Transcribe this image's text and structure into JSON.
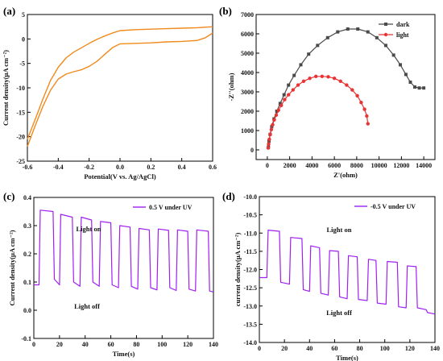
{
  "chart_data": [
    {
      "panel": "(a)",
      "type": "line",
      "xlabel": "Potential(V vs. Ag/AgCl)",
      "ylabel": "Current density(µA cm⁻²)",
      "xlim": [
        -0.6,
        0.6
      ],
      "ylim": [
        -25,
        5
      ],
      "xticks": [
        -0.6,
        -0.4,
        -0.2,
        0.0,
        0.2,
        0.4,
        0.6
      ],
      "xtick_labels": [
        "-0.6",
        "-0.4",
        "-0.2",
        "0.0",
        "0.2",
        "0.4",
        "0.6"
      ],
      "yticks": [
        -25,
        -20,
        -15,
        -10,
        -5,
        0,
        5
      ],
      "ytick_labels": [
        "-25",
        "-20",
        "-15",
        "-10",
        "-5",
        "0",
        "5"
      ],
      "grid": false,
      "color": "#f08a1c",
      "series": [
        {
          "x": [
            -0.6,
            -0.55,
            -0.5,
            -0.45,
            -0.4,
            -0.35,
            -0.3,
            -0.25,
            -0.2,
            -0.15,
            -0.1,
            -0.05,
            0.0,
            0.1,
            0.2,
            0.3,
            0.4,
            0.5,
            0.6
          ],
          "values": [
            -20.5,
            -16.5,
            -12.3,
            -8.5,
            -5.8,
            -3.9,
            -2.7,
            -1.8,
            -0.9,
            -0.1,
            0.6,
            1.2,
            1.7,
            1.9,
            2.0,
            2.1,
            2.2,
            2.3,
            2.5
          ]
        },
        {
          "x": [
            0.6,
            0.55,
            0.5,
            0.4,
            0.3,
            0.2,
            0.1,
            0.0,
            -0.05,
            -0.1,
            -0.15,
            -0.2,
            -0.25,
            -0.3,
            -0.35,
            -0.4,
            -0.45,
            -0.5,
            -0.55,
            -0.6
          ],
          "values": [
            1.2,
            0.2,
            -0.3,
            -0.5,
            -0.6,
            -0.8,
            -0.9,
            -1.0,
            -1.8,
            -3.2,
            -4.6,
            -5.6,
            -6.3,
            -6.7,
            -7.2,
            -8.2,
            -10.5,
            -13.8,
            -17.8,
            -22.0
          ]
        }
      ]
    },
    {
      "panel": "(b)",
      "type": "scatter",
      "xlabel": "Z'(ohm)",
      "ylabel": "-Z''(ohm)",
      "xlim": [
        -1000,
        15000
      ],
      "ylim": [
        -500,
        7000
      ],
      "xticks": [
        0,
        2000,
        4000,
        6000,
        8000,
        10000,
        12000,
        14000
      ],
      "xtick_labels": [
        "0",
        "2000",
        "4000",
        "6000",
        "8000",
        "10000",
        "12000",
        "14000"
      ],
      "yticks": [
        0,
        1000,
        2000,
        3000,
        4000,
        5000,
        6000,
        7000
      ],
      "ytick_labels": [
        "0",
        "1000",
        "2000",
        "3000",
        "4000",
        "5000",
        "6000",
        "7000"
      ],
      "grid": false,
      "legend": "top-right",
      "series": [
        {
          "name": "dark",
          "color": "#4a4a4a",
          "marker": "square",
          "x": [
            100,
            150,
            250,
            400,
            600,
            850,
            1150,
            1500,
            1900,
            2400,
            3000,
            3700,
            4500,
            5400,
            6300,
            7200,
            8100,
            9000,
            9800,
            10600,
            11300,
            11900,
            12400,
            12800,
            13200,
            13600,
            14000
          ],
          "values": [
            150,
            450,
            800,
            1200,
            1600,
            2000,
            2400,
            2850,
            3350,
            3850,
            4400,
            4950,
            5400,
            5800,
            6100,
            6250,
            6250,
            6100,
            5800,
            5400,
            4900,
            4400,
            3900,
            3500,
            3250,
            3200,
            3200
          ]
        },
        {
          "name": "light",
          "color": "#e83434",
          "marker": "circle",
          "x": [
            80,
            120,
            180,
            260,
            360,
            480,
            620,
            800,
            1000,
            1250,
            1550,
            1900,
            2300,
            2750,
            3250,
            3800,
            4350,
            4900,
            5450,
            6000,
            6550,
            7100,
            7600,
            8050,
            8400,
            8700,
            8900,
            9000
          ],
          "values": [
            100,
            300,
            550,
            800,
            1050,
            1300,
            1550,
            1800,
            2050,
            2300,
            2600,
            2850,
            3100,
            3350,
            3550,
            3700,
            3800,
            3800,
            3780,
            3700,
            3550,
            3350,
            3100,
            2800,
            2450,
            2100,
            1750,
            1350
          ]
        }
      ]
    },
    {
      "panel": "(c)",
      "type": "line",
      "xlabel": "Time(s)",
      "ylabel": "Current density(µA cm⁻²)",
      "xlim": [
        0,
        140
      ],
      "ylim": [
        -0.1,
        0.4
      ],
      "xticks": [
        0,
        20,
        40,
        60,
        80,
        100,
        120,
        140
      ],
      "xtick_labels": [
        "0",
        "20",
        "40",
        "60",
        "80",
        "100",
        "120",
        "140"
      ],
      "yticks": [
        -0.1,
        0.0,
        0.1,
        0.2,
        0.3,
        0.4
      ],
      "ytick_labels": [
        "-0.1",
        "0.0",
        "0.1",
        "0.2",
        "0.3",
        "0.4"
      ],
      "grid": false,
      "legend": "top-right",
      "annotations": [
        "Light on",
        "Light off"
      ],
      "series": [
        {
          "name": "0.5 V under UV",
          "color": "#a020f0",
          "x": [
            0,
            4,
            5,
            15,
            16,
            20,
            21,
            30,
            31,
            36,
            37,
            45,
            46,
            51,
            52,
            60,
            61,
            66,
            67,
            75,
            76,
            81,
            82,
            90,
            91,
            96,
            97,
            105,
            106,
            111,
            112,
            120,
            121,
            126,
            127,
            136,
            137,
            140
          ],
          "values": [
            0.09,
            0.09,
            0.355,
            0.35,
            0.11,
            0.09,
            0.34,
            0.33,
            0.1,
            0.085,
            0.33,
            0.32,
            0.1,
            0.085,
            0.315,
            0.31,
            0.09,
            0.08,
            0.3,
            0.295,
            0.085,
            0.075,
            0.29,
            0.285,
            0.08,
            0.072,
            0.288,
            0.283,
            0.08,
            0.07,
            0.285,
            0.28,
            0.075,
            0.068,
            0.285,
            0.28,
            0.068,
            0.065
          ]
        }
      ]
    },
    {
      "panel": "(d)",
      "type": "line",
      "xlabel": "Time(s)",
      "ylabel": "current density(µA cm⁻²)",
      "xlim": [
        0,
        140
      ],
      "ylim": [
        -14,
        -10
      ],
      "xticks": [
        0,
        20,
        40,
        60,
        80,
        100,
        120,
        140
      ],
      "xtick_labels": [
        "0",
        "20",
        "40",
        "60",
        "80",
        "100",
        "120",
        "140"
      ],
      "yticks": [
        -14.0,
        -13.5,
        -13.0,
        -12.5,
        -12.0,
        -11.5,
        -11.0,
        -10.5,
        -10.0
      ],
      "ytick_labels": [
        "-14.0",
        "-13.5",
        "-13.0",
        "-12.5",
        "-12.0",
        "-11.5",
        "-11.0",
        "-10.5",
        "-10.0"
      ],
      "grid": false,
      "legend": "top-right",
      "annotations": [
        "Light on",
        "Light off"
      ],
      "series": [
        {
          "name": "-0.5 V under UV",
          "color": "#a020f0",
          "x": [
            0,
            6,
            7,
            16,
            17,
            24,
            25,
            34,
            35,
            40,
            41,
            48,
            49,
            55,
            56,
            63,
            64,
            70,
            71,
            78,
            79,
            86,
            87,
            93,
            94,
            101,
            102,
            110,
            111,
            117,
            118,
            125,
            126,
            133,
            134,
            140
          ],
          "values": [
            -12.22,
            -12.22,
            -10.92,
            -10.95,
            -12.35,
            -12.4,
            -11.12,
            -11.15,
            -12.55,
            -12.6,
            -11.35,
            -11.4,
            -12.65,
            -12.7,
            -11.48,
            -11.5,
            -12.75,
            -12.8,
            -11.62,
            -11.65,
            -12.82,
            -12.85,
            -11.72,
            -11.75,
            -12.92,
            -12.95,
            -11.78,
            -11.8,
            -13.02,
            -13.05,
            -11.9,
            -11.92,
            -13.05,
            -13.1,
            -13.18,
            -13.22
          ]
        }
      ]
    }
  ],
  "labels": {
    "panel_a": "(a)",
    "panel_b": "(b)",
    "panel_c": "(c)",
    "panel_d": "(d)",
    "light_on": "Light on",
    "light_off": "Light off"
  }
}
